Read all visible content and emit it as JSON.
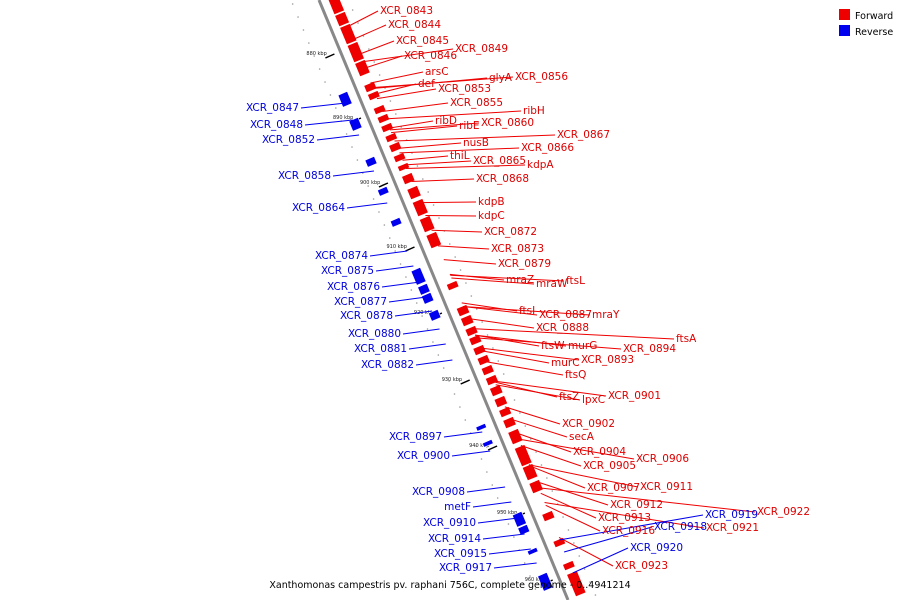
{
  "caption": "Xanthomonas campestris pv. raphani 756C, complete genome - 0..4941214",
  "legend": [
    {
      "label": "Forward",
      "color": "#ee0000"
    },
    {
      "label": "Reverse",
      "color": "#0000ee"
    }
  ],
  "colors": {
    "forward": "#ee0000",
    "reverse": "#0000ee",
    "backbone": "#888888"
  },
  "ticks": [
    "880 kbp",
    "890 kbp",
    "900 kbp",
    "910 kbp",
    "920 kbp",
    "930 kbp",
    "940 kbp",
    "950 kbp",
    "960 kbp"
  ],
  "forward_genes": [
    "XCR_0843",
    "XCR_0844",
    "XCR_0845",
    "XCR_0846",
    "XCR_0849",
    "arsC",
    "def",
    "glyA",
    "XCR_0856",
    "XCR_0853",
    "XCR_0855",
    "ribH",
    "ribD",
    "ribE",
    "XCR_0860",
    "XCR_0867",
    "nusB",
    "XCR_0866",
    "thiL",
    "XCR_0865",
    "kdpA",
    "XCR_0868",
    "kdpB",
    "kdpC",
    "XCR_0872",
    "XCR_0873",
    "XCR_0879",
    "mraZ",
    "mraW",
    "ftsL",
    "ftsI",
    "XCR_0887",
    "mraY",
    "XCR_0888",
    "ftsA",
    "ftsW",
    "murG",
    "XCR_0894",
    "murC",
    "XCR_0893",
    "ftsQ",
    "XCR_0901",
    "ftsZ",
    "lpxC",
    "XCR_0902",
    "secA",
    "XCR_0904",
    "XCR_0906",
    "XCR_0905",
    "XCR_0907",
    "XCR_0911",
    "XCR_0912",
    "XCR_0922",
    "XCR_0913",
    "XCR_0921",
    "XCR_0916",
    "XCR_0923"
  ],
  "reverse_genes": [
    "XCR_0847",
    "XCR_0848",
    "XCR_0852",
    "XCR_0858",
    "XCR_0864",
    "XCR_0874",
    "XCR_0875",
    "XCR_0876",
    "XCR_0877",
    "XCR_0878",
    "XCR_0880",
    "XCR_0881",
    "XCR_0882",
    "XCR_0897",
    "XCR_0900",
    "XCR_0908",
    "metF",
    "XCR_0910",
    "XCR_0914",
    "XCR_0915",
    "XCR_0917",
    "XCR_0919",
    "XCR_0918",
    "XCR_0920"
  ]
}
